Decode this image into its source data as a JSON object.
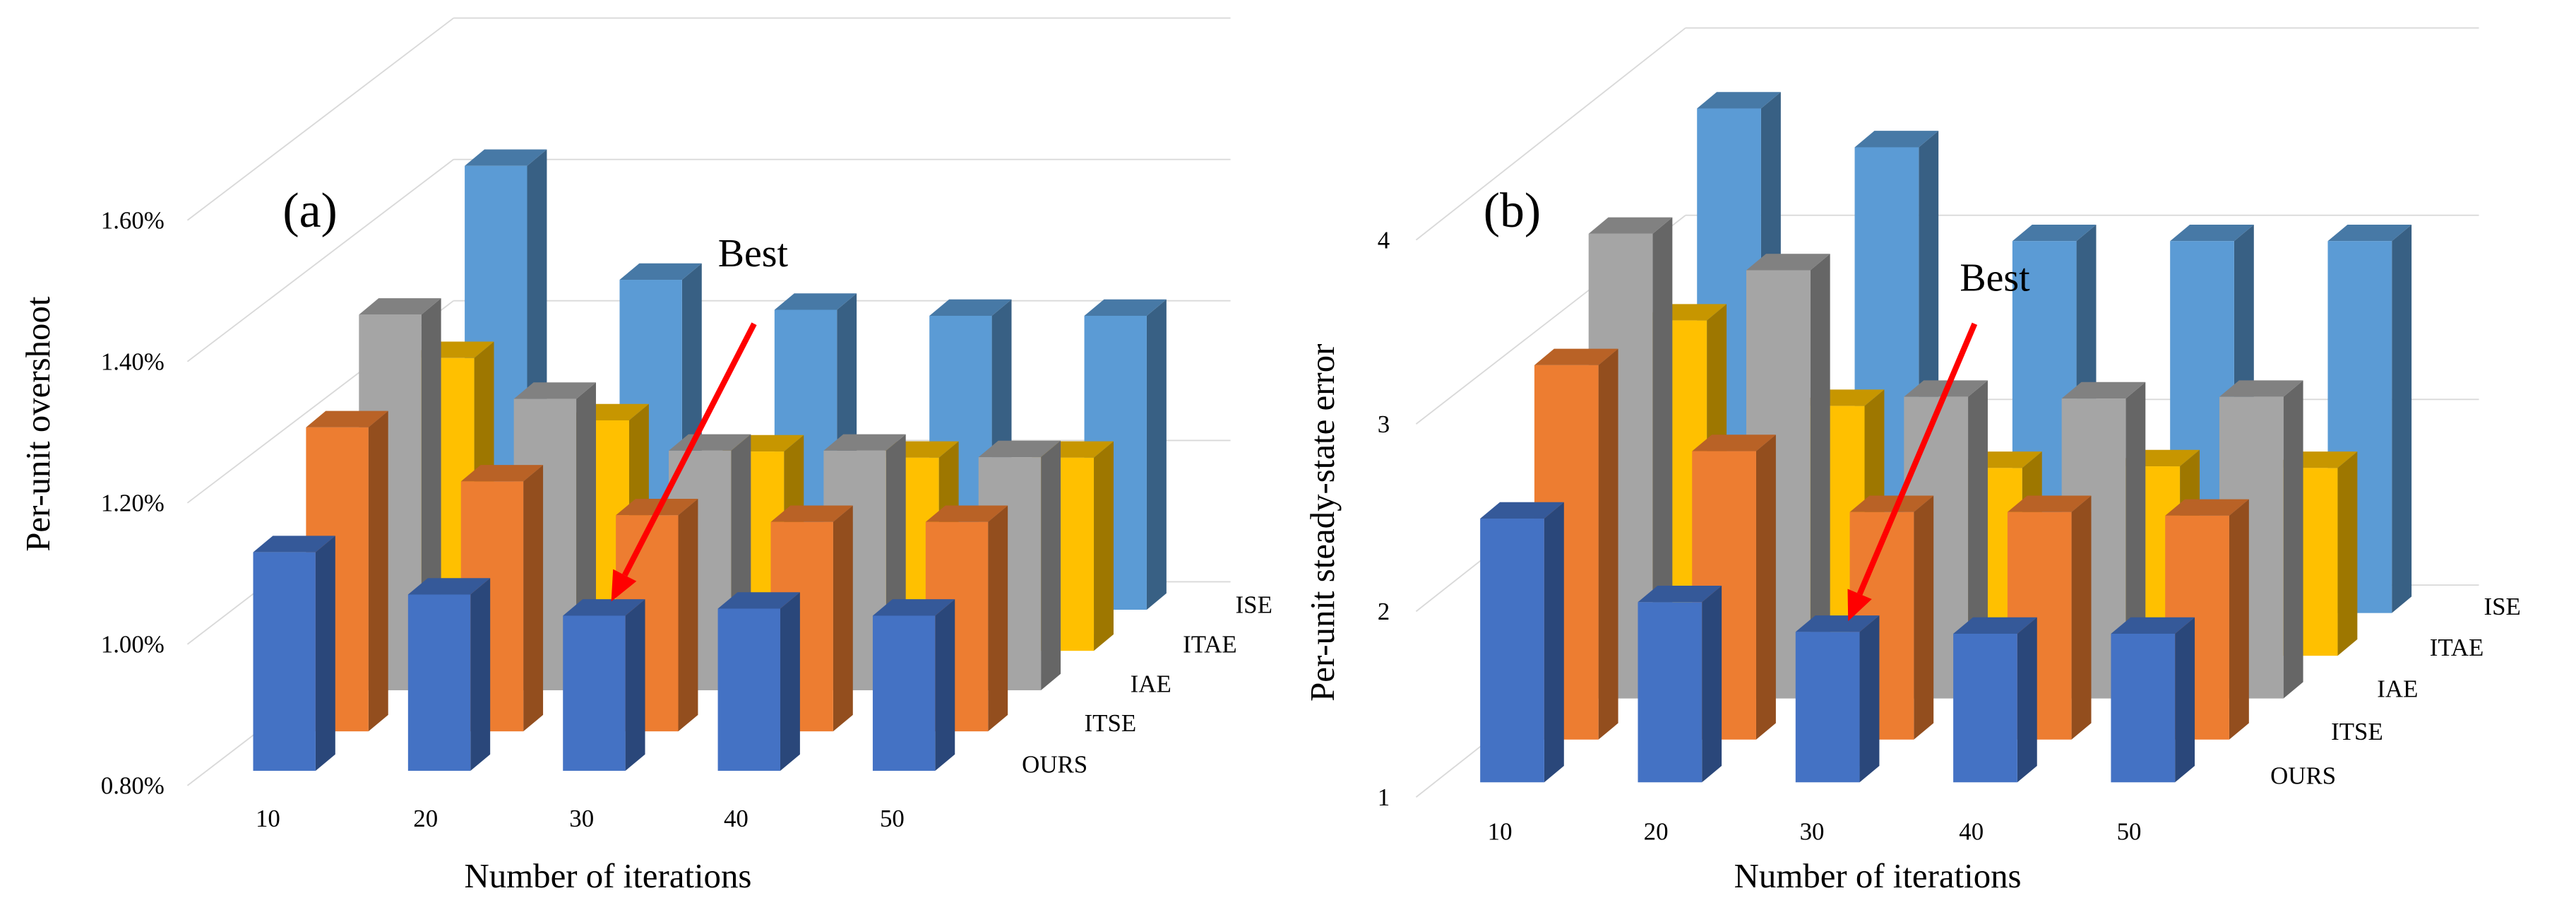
{
  "chart_data": [
    {
      "type": "bar",
      "subtype": "3d-column",
      "panel_label": "(a)",
      "title": "",
      "xlabel": "Number of iterations",
      "ylabel": "Per-unit overshoot",
      "categories": [
        "10",
        "20",
        "30",
        "40",
        "50"
      ],
      "yticks": [
        "0.80%",
        "1.00%",
        "1.20%",
        "1.40%",
        "1.60%"
      ],
      "ylim": [
        0.8,
        1.6
      ],
      "unit": "%",
      "series": [
        {
          "name": "OURS",
          "color": "#4472C4",
          "values": [
            1.11,
            1.05,
            1.02,
            1.03,
            1.02
          ]
        },
        {
          "name": "ITSE",
          "color": "#ED7D31",
          "values": [
            1.25,
            1.17,
            1.12,
            1.11,
            1.11
          ]
        },
        {
          "name": "IAE",
          "color": "#A5A5A5",
          "values": [
            1.38,
            1.25,
            1.17,
            1.17,
            1.16
          ]
        },
        {
          "name": "ITAE",
          "color": "#FFC000",
          "values": [
            1.27,
            1.17,
            1.12,
            1.11,
            1.11
          ]
        },
        {
          "name": "ISE",
          "color": "#5B9BD5",
          "values": [
            1.54,
            1.35,
            1.3,
            1.29,
            1.29
          ]
        }
      ],
      "annotation": {
        "text": "Best",
        "target_series": "OURS",
        "target_category": "30",
        "arrow_color": "#FF0000"
      },
      "grid": true,
      "legend": "right (series labels along depth axis)"
    },
    {
      "type": "bar",
      "subtype": "3d-column",
      "panel_label": "(b)",
      "title": "",
      "xlabel": "Number of iterations",
      "ylabel": "Per-unit steady-state error",
      "categories": [
        "10",
        "20",
        "30",
        "40",
        "50"
      ],
      "yticks": [
        "1",
        "2",
        "3",
        "4"
      ],
      "ylim": [
        1,
        4
      ],
      "series": [
        {
          "name": "OURS",
          "color": "#4472C4",
          "values": [
            2.42,
            1.97,
            1.81,
            1.8,
            1.8
          ]
        },
        {
          "name": "ITSE",
          "color": "#ED7D31",
          "values": [
            3.09,
            2.61,
            2.27,
            2.27,
            2.25
          ]
        },
        {
          "name": "IAE",
          "color": "#A5A5A5",
          "values": [
            3.68,
            3.47,
            2.74,
            2.73,
            2.74
          ]
        },
        {
          "name": "ITAE",
          "color": "#FFC000",
          "values": [
            3.0,
            2.49,
            2.12,
            2.13,
            2.12
          ]
        },
        {
          "name": "ISE",
          "color": "#5B9BD5",
          "values": [
            4.12,
            3.88,
            3.3,
            3.3,
            3.3
          ]
        }
      ],
      "annotation": {
        "text": "Best",
        "target_series": "OURS",
        "target_category": "30",
        "arrow_color": "#FF0000"
      },
      "grid": true,
      "legend": "right (series labels along depth axis)"
    }
  ]
}
